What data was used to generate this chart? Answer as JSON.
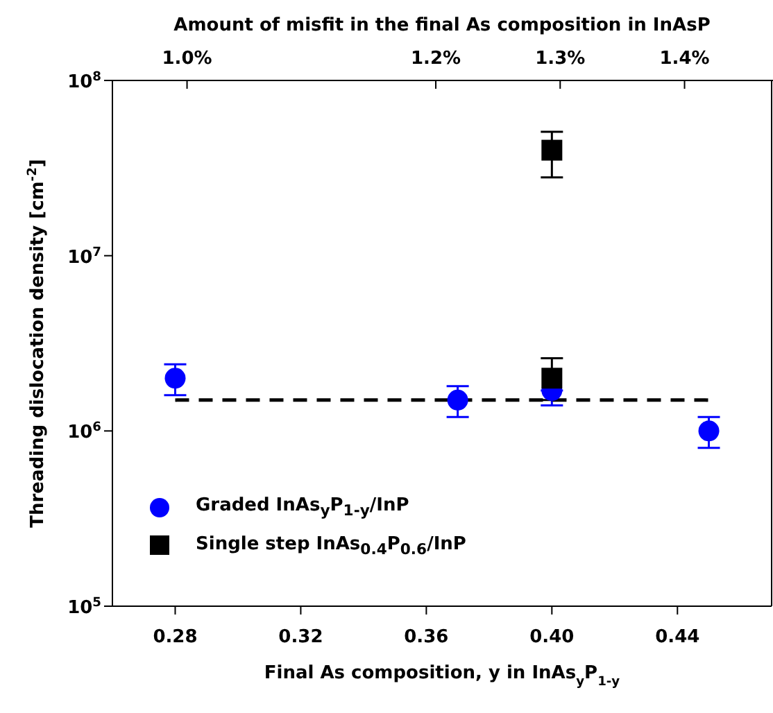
{
  "chart_data": {
    "type": "scatter",
    "x2label": "Amount of misfit in the final As composition in InAsP",
    "xlabel": "Final As composition, y in InAs$_{y}$P$_{1-y}$",
    "ylabel": "Threading dislocation density [cm$^{-2}$]",
    "xlim": [
      0.26,
      0.47
    ],
    "xticks": [
      {
        "value": 0.28,
        "label": "0.28"
      },
      {
        "value": 0.32,
        "label": "0.32"
      },
      {
        "value": 0.36,
        "label": "0.36"
      },
      {
        "value": 0.4,
        "label": "0.40"
      },
      {
        "value": 0.44,
        "label": "0.44"
      }
    ],
    "ylim": [
      100000,
      100000000
    ],
    "yticks": [
      {
        "value": 100000,
        "label": "10$^{5}$"
      },
      {
        "value": 1000000,
        "label": "10$^{6}$"
      },
      {
        "value": 10000000,
        "label": "10$^{7}$"
      },
      {
        "value": 100000000,
        "label": "10$^{8}$"
      }
    ],
    "log": "y",
    "legend": "bottom left",
    "x2lim": [
      0.94,
      1.47
    ],
    "x2ticks": [
      {
        "value": 1.0,
        "label": "1.0%"
      },
      {
        "value": 1.2,
        "label": "1.2%"
      },
      {
        "value": 1.3,
        "label": "1.3%"
      },
      {
        "value": 1.4,
        "label": "1.4%"
      }
    ],
    "series": [
      {
        "name": "Graded InAs$_{y}$P$_{1-y}$/InP",
        "color": "#0000ff",
        "marker": "circle",
        "x": [
          0.28,
          0.37,
          0.4,
          0.45
        ],
        "values": [
          2000000,
          1500000,
          1700000,
          1000000
        ],
        "errors": [
          [
            1600000,
            2400000
          ],
          [
            1200000,
            1800000
          ],
          [
            1400000,
            1700000
          ],
          [
            800000,
            1200000
          ]
        ]
      },
      {
        "name": "Single step InAs$_{0.4}$P$_{0.6}$/InP",
        "color": "#000000",
        "marker": "square",
        "x": [
          0.4,
          0.4
        ],
        "values": [
          2000000,
          40000000
        ],
        "errors": [
          [
            1500000,
            2600000
          ],
          [
            28000000,
            51000000
          ]
        ]
      },
      {
        "type": "line",
        "color": "#000000",
        "line_style": "dashed",
        "marker": "none",
        "x": [
          0.28,
          0.45
        ],
        "values": [
          1500000,
          1500000
        ]
      }
    ]
  }
}
